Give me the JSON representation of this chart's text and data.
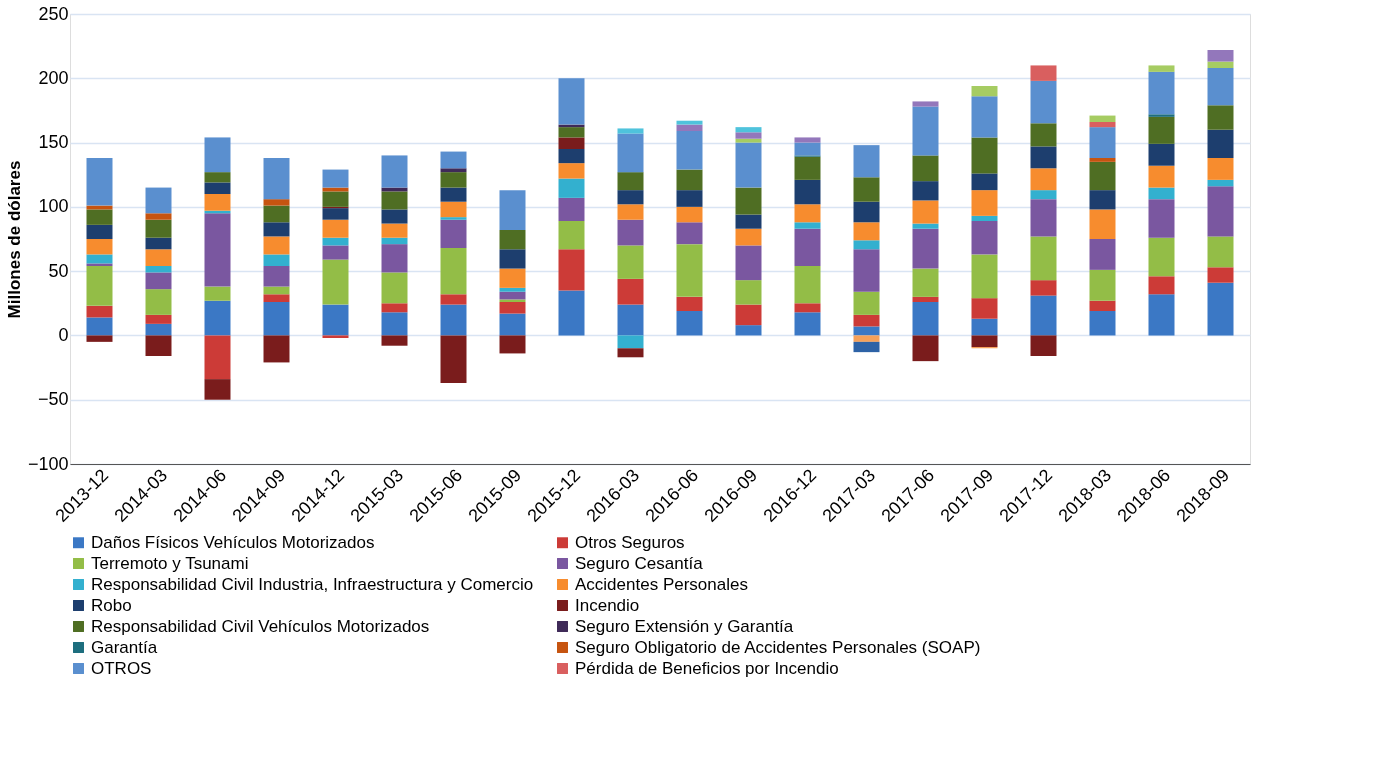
{
  "chart_data": {
    "type": "bar",
    "stacked": true,
    "ylabel": "Millones de dólares",
    "categories": [
      "2013-12",
      "2014-03",
      "2014-06",
      "2014-09",
      "2014-12",
      "2015-03",
      "2015-06",
      "2015-09",
      "2015-12",
      "2016-03",
      "2016-06",
      "2016-09",
      "2016-12",
      "2017-03",
      "2017-06",
      "2017-09",
      "2017-12",
      "2018-03",
      "2018-06",
      "2018-09"
    ],
    "ylim": [
      -100,
      250
    ],
    "yticks": [
      -100,
      -50,
      0,
      50,
      100,
      150,
      200,
      250
    ],
    "grid": "y",
    "legend": "bottom",
    "series": [
      {
        "name": "Daños Físicos Vehículos Motorizados",
        "color": "#3b78c5",
        "values": [
          14,
          9,
          27,
          26,
          24,
          18,
          24,
          17,
          35,
          24,
          19,
          8,
          18,
          7,
          26,
          13,
          31,
          19,
          32,
          41
        ]
      },
      {
        "name": "Otros Seguros",
        "color": "#cc3b37",
        "values": [
          9,
          7,
          -34,
          6,
          -2,
          7,
          8,
          9,
          32,
          20,
          11,
          16,
          7,
          9,
          4,
          16,
          12,
          8,
          14,
          12
        ]
      },
      {
        "name": "Terremoto y Tsunami",
        "color": "#93bd47",
        "values": [
          31,
          20,
          11,
          6,
          35,
          24,
          36,
          2,
          22,
          26,
          41,
          19,
          29,
          18,
          22,
          34,
          34,
          24,
          30,
          24
        ]
      },
      {
        "name": "Seguro Cesantía",
        "color": "#7a57a0",
        "values": [
          2,
          13,
          57,
          16,
          11,
          22,
          22,
          6,
          18,
          20,
          17,
          27,
          29,
          33,
          31,
          26,
          29,
          24,
          30,
          39
        ]
      },
      {
        "name": "Responsabilidad Civil Industria, Infraestructura y Comercio",
        "color": "#33b0cf",
        "values": [
          7,
          5,
          2,
          9,
          6,
          5,
          2,
          3,
          15,
          -10,
          null,
          null,
          5,
          7,
          4,
          4,
          7,
          null,
          9,
          5
        ]
      },
      {
        "name": "Accidentes Personales",
        "color": "#f78c2e",
        "values": [
          12,
          13,
          13,
          14,
          14,
          11,
          12,
          15,
          12,
          12,
          12,
          13,
          14,
          14,
          18,
          20,
          17,
          23,
          17,
          17
        ]
      },
      {
        "name": "Robo",
        "color": "#1d3e6e",
        "values": [
          11,
          9,
          9,
          11,
          9,
          11,
          11,
          15,
          11,
          11,
          13,
          11,
          19,
          16,
          15,
          13,
          17,
          15,
          17,
          22
        ]
      },
      {
        "name": "Incendio",
        "color": "#7a1c1c",
        "values": [
          -5,
          -16,
          -16,
          -21,
          1,
          -8,
          -37,
          -14,
          9,
          -7,
          null,
          null,
          null,
          null,
          -20,
          -9,
          -16,
          null,
          null,
          null
        ]
      },
      {
        "name": "Responsabilidad Civil Vehículos Motorizados",
        "color": "#4f6e23",
        "values": [
          12,
          14,
          8,
          13,
          12,
          14,
          12,
          15,
          8,
          14,
          16,
          21,
          18,
          19,
          20,
          28,
          18,
          22,
          21,
          19
        ]
      },
      {
        "name": "Seguro Extensión y Garantía",
        "color": "#3f2a58",
        "values": [
          null,
          null,
          null,
          null,
          null,
          3,
          3,
          null,
          2,
          null,
          null,
          null,
          null,
          null,
          null,
          null,
          null,
          null,
          null,
          null
        ]
      },
      {
        "name": "Garantía",
        "color": "#1d6e7e",
        "values": [
          null,
          null,
          null,
          null,
          null,
          null,
          null,
          null,
          null,
          null,
          null,
          null,
          1,
          null,
          null,
          null,
          null,
          null,
          2,
          null
        ]
      },
      {
        "name": "Seguro Obligatorio de Accidentes Personales (SOAP)",
        "color": "#c65410",
        "values": [
          3,
          5,
          null,
          5,
          3,
          null,
          null,
          null,
          null,
          null,
          null,
          null,
          null,
          null,
          null,
          null,
          null,
          3,
          null,
          null
        ]
      },
      {
        "name": "OTROS",
        "color": "#5a8fcf",
        "values": [
          37,
          20,
          27,
          32,
          14,
          25,
          13,
          31,
          36,
          30,
          30,
          35,
          10,
          25,
          38,
          32,
          33,
          24,
          33,
          29
        ]
      },
      {
        "name": "Pérdida de Beneficios por Incendio",
        "color": "#d95f5f",
        "values": [
          null,
          null,
          null,
          null,
          null,
          null,
          null,
          null,
          null,
          null,
          null,
          null,
          null,
          null,
          null,
          null,
          12,
          4,
          null,
          null
        ]
      },
      {
        "color": "#a6cc62",
        "values": [
          null,
          null,
          null,
          null,
          null,
          null,
          null,
          null,
          null,
          null,
          null,
          3,
          null,
          null,
          null,
          8,
          null,
          5,
          5,
          5
        ]
      },
      {
        "color": "#9377bb",
        "values": [
          null,
          null,
          null,
          null,
          null,
          null,
          null,
          null,
          null,
          null,
          5,
          5,
          4,
          null,
          4,
          null,
          null,
          null,
          null,
          9
        ]
      },
      {
        "color": "#4fc3dc",
        "values": [
          null,
          null,
          null,
          null,
          null,
          null,
          null,
          null,
          null,
          4,
          3,
          4,
          null,
          null,
          null,
          null,
          null,
          null,
          null,
          null
        ]
      },
      {
        "color": "#f6a15a",
        "values": [
          null,
          null,
          null,
          null,
          null,
          null,
          null,
          null,
          null,
          null,
          null,
          null,
          null,
          -5,
          null,
          -1,
          null,
          null,
          null,
          null
        ]
      },
      {
        "color": "#2d62a6",
        "values": [
          null,
          null,
          null,
          null,
          null,
          null,
          null,
          null,
          null,
          null,
          null,
          null,
          null,
          -8,
          null,
          null,
          null,
          null,
          null,
          null
        ]
      }
    ]
  }
}
